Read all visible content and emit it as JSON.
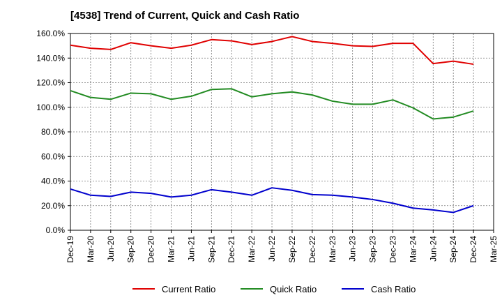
{
  "chart_data": {
    "type": "line",
    "title": "[4538]  Trend of Current, Quick and Cash Ratio",
    "xlabel": "",
    "ylabel": "",
    "ylim": [
      0,
      160
    ],
    "y_ticks": [
      0,
      20,
      40,
      60,
      80,
      100,
      120,
      140,
      160
    ],
    "y_tick_format": "percent_1dp",
    "x_ticks": [
      "Dec-19",
      "Mar-20",
      "Jun-20",
      "Sep-20",
      "Dec-20",
      "Mar-21",
      "Jun-21",
      "Sep-21",
      "Dec-21",
      "Mar-22",
      "Jun-22",
      "Sep-22",
      "Dec-22",
      "Mar-23",
      "Jun-23",
      "Sep-23",
      "Dec-23",
      "Mar-24",
      "Jun-24",
      "Sep-24",
      "Dec-24",
      "Mar-25"
    ],
    "grid": true,
    "legend_position": "bottom",
    "categories": [
      "Dec-19",
      "Mar-20",
      "Jun-20",
      "Sep-20",
      "Dec-20",
      "Mar-21",
      "Jun-21",
      "Sep-21",
      "Dec-21",
      "Mar-22",
      "Jun-22",
      "Sep-22",
      "Dec-22",
      "Mar-23",
      "Jun-23",
      "Sep-23",
      "Dec-23",
      "Mar-24",
      "Jun-24",
      "Sep-24",
      "Dec-24"
    ],
    "series": [
      {
        "name": "Current Ratio",
        "color": "#e00000",
        "values": [
          150.5,
          148.0,
          147.0,
          152.5,
          150.0,
          148.0,
          150.5,
          155.0,
          154.0,
          151.0,
          153.5,
          157.5,
          153.5,
          152.0,
          150.0,
          149.5,
          152.0,
          152.0,
          135.5,
          137.5,
          135.0
        ]
      },
      {
        "name": "Quick Ratio",
        "color": "#228b22",
        "values": [
          113.5,
          108.0,
          106.5,
          111.5,
          111.0,
          106.5,
          109.0,
          114.5,
          115.0,
          108.5,
          111.0,
          112.5,
          110.0,
          105.0,
          102.5,
          102.5,
          106.0,
          99.5,
          90.5,
          92.0,
          97.0
        ]
      },
      {
        "name": "Cash Ratio",
        "color": "#0000cd",
        "values": [
          33.5,
          28.5,
          27.5,
          31.0,
          30.0,
          27.0,
          28.5,
          33.0,
          31.0,
          28.5,
          34.5,
          32.5,
          29.0,
          28.5,
          27.0,
          25.0,
          22.0,
          18.0,
          16.5,
          14.5,
          20.0
        ]
      }
    ]
  }
}
